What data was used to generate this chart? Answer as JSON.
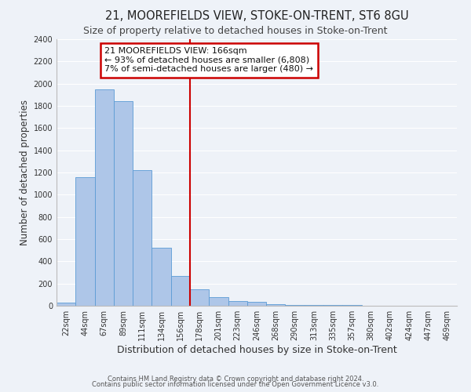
{
  "title": "21, MOOREFIELDS VIEW, STOKE-ON-TRENT, ST6 8GU",
  "subtitle": "Size of property relative to detached houses in Stoke-on-Trent",
  "xlabel": "Distribution of detached houses by size in Stoke-on-Trent",
  "ylabel": "Number of detached properties",
  "bar_labels": [
    "22sqm",
    "44sqm",
    "67sqm",
    "89sqm",
    "111sqm",
    "134sqm",
    "156sqm",
    "178sqm",
    "201sqm",
    "223sqm",
    "246sqm",
    "268sqm",
    "290sqm",
    "313sqm",
    "335sqm",
    "357sqm",
    "380sqm",
    "402sqm",
    "424sqm",
    "447sqm",
    "469sqm"
  ],
  "bar_values": [
    25,
    1155,
    1950,
    1840,
    1220,
    520,
    265,
    150,
    80,
    45,
    35,
    12,
    10,
    8,
    6,
    4,
    3,
    2,
    2,
    1,
    2
  ],
  "bar_color": "#aec6e8",
  "bar_edgecolor": "#5b9bd5",
  "vline_x": 7.0,
  "vline_color": "#cc0000",
  "ylim": [
    0,
    2400
  ],
  "yticks": [
    0,
    200,
    400,
    600,
    800,
    1000,
    1200,
    1400,
    1600,
    1800,
    2000,
    2200,
    2400
  ],
  "annotation_title": "21 MOOREFIELDS VIEW: 166sqm",
  "annotation_line1": "← 93% of detached houses are smaller (6,808)",
  "annotation_line2": "7% of semi-detached houses are larger (480) →",
  "annotation_box_color": "#cc0000",
  "footer1": "Contains HM Land Registry data © Crown copyright and database right 2024.",
  "footer2": "Contains public sector information licensed under the Open Government Licence v3.0.",
  "background_color": "#eef2f8",
  "grid_color": "#ffffff",
  "title_fontsize": 10.5,
  "subtitle_fontsize": 9,
  "xlabel_fontsize": 9,
  "ylabel_fontsize": 8.5,
  "tick_fontsize": 7,
  "annot_fontsize": 8,
  "footer_fontsize": 6
}
